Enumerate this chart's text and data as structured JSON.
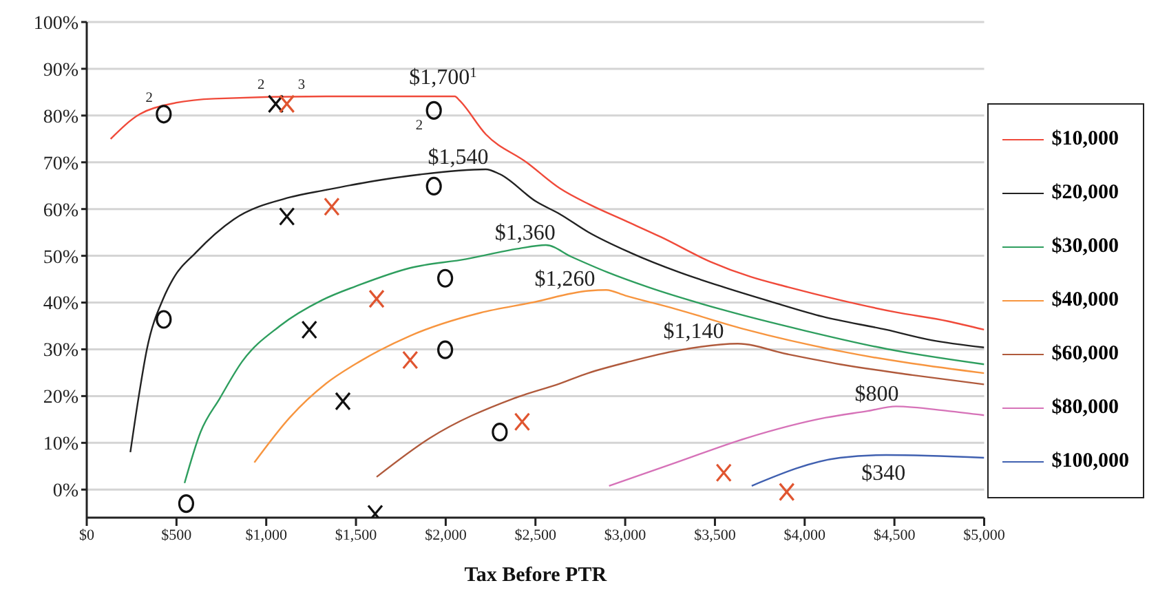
{
  "chart_data": {
    "type": "line",
    "xlabel": "Tax Before PTR",
    "xlim": [
      0,
      5000
    ],
    "xticks": [
      {
        "value": 0,
        "label": "$0"
      },
      {
        "value": 500,
        "label": "$500"
      },
      {
        "value": 1000,
        "label": "$1,000"
      },
      {
        "value": 1500,
        "label": "$1,500"
      },
      {
        "value": 2000,
        "label": "$2,000"
      },
      {
        "value": 2500,
        "label": "$2,500"
      },
      {
        "value": 3000,
        "label": "$3,000"
      },
      {
        "value": 3500,
        "label": "$3,500"
      },
      {
        "value": 4000,
        "label": "$4,000"
      },
      {
        "value": 4500,
        "label": "$4,500"
      },
      {
        "value": 5000,
        "label": "$5,000"
      }
    ],
    "ylim": [
      -6,
      100
    ],
    "yticks": [
      {
        "value": 0,
        "label": "0%"
      },
      {
        "value": 10,
        "label": "10%"
      },
      {
        "value": 20,
        "label": "20%"
      },
      {
        "value": 30,
        "label": "30%"
      },
      {
        "value": 40,
        "label": "40%"
      },
      {
        "value": 50,
        "label": "50%"
      },
      {
        "value": 60,
        "label": "60%"
      },
      {
        "value": 70,
        "label": "70%"
      },
      {
        "value": 80,
        "label": "80%"
      },
      {
        "value": 90,
        "label": "90%"
      },
      {
        "value": 100,
        "label": "100%"
      }
    ],
    "grid": "y",
    "legend": "right",
    "marker": "none",
    "line_style": "solid",
    "series": [
      {
        "name": "$10,000",
        "color": "#f04a3a",
        "x": [
          133,
          296,
          374,
          710,
          1334,
          2051,
          2075,
          2223,
          2450,
          2637,
          2800,
          3000,
          3200,
          3471,
          3700,
          3908,
          4200,
          4500,
          4800,
          5000
        ],
        "values": [
          75,
          80.3,
          81.6,
          83.6,
          84.1,
          84.1,
          83.3,
          76,
          70,
          64.4,
          61,
          57.5,
          54,
          48.8,
          45.5,
          43.3,
          40.5,
          38,
          36,
          34.2
        ]
      },
      {
        "name": "$20,000",
        "color": "#222222",
        "x": [
          243,
          290,
          335,
          428,
          480,
          608,
          819,
          1131,
          1334,
          1600,
          1857,
          2223,
          2300,
          2504,
          2637,
          2793,
          3027,
          3300,
          3549,
          3830,
          4100,
          4454,
          4700,
          5000
        ],
        "values": [
          8,
          20,
          30,
          41,
          45,
          50.7,
          57.8,
          62.5,
          64.1,
          66,
          67.4,
          68.5,
          67.5,
          61.6,
          58.9,
          55.1,
          50.7,
          46.5,
          43.3,
          40,
          37,
          34.2,
          32,
          30.4
        ]
      },
      {
        "name": "$30,000",
        "color": "#2e9e5e",
        "x": [
          545,
          634,
          741,
          866,
          1076,
          1310,
          1521,
          1802,
          2114,
          2400,
          2558,
          2700,
          2900,
          3128,
          3549,
          4000,
          4454,
          5000
        ],
        "values": [
          1.4,
          12.3,
          19.5,
          27.4,
          35,
          40.5,
          43.8,
          47.4,
          49.3,
          51.5,
          52.3,
          49.8,
          46.5,
          43.3,
          38.4,
          34,
          30.1,
          26.8
        ]
      },
      {
        "name": "$40,000",
        "color": "#f7953f",
        "x": [
          934,
          1131,
          1334,
          1521,
          1802,
          2192,
          2480,
          2793,
          2894,
          3000,
          3284,
          3674,
          4197,
          5000
        ],
        "values": [
          5.8,
          15.4,
          22.7,
          27.4,
          32.9,
          37.8,
          40,
          42.5,
          42.7,
          41.5,
          38.6,
          34.2,
          29.6,
          24.9
        ]
      },
      {
        "name": "$60,000",
        "color": "#b05a3c",
        "x": [
          1615,
          1911,
          2379,
          2637,
          2793,
          3027,
          3300,
          3627,
          3900,
          4197,
          4600,
          5000
        ],
        "values": [
          2.7,
          11,
          19.5,
          22.7,
          24.9,
          27.4,
          29.8,
          31.2,
          29,
          26.8,
          24.5,
          22.5
        ]
      },
      {
        "name": "$80,000",
        "color": "#d672b8",
        "x": [
          2910,
          3284,
          3674,
          4119,
          4350,
          4509,
          4800,
          5000
        ],
        "values": [
          0.8,
          5.8,
          11,
          15.4,
          16.8,
          17.8,
          16.8,
          15.9
        ]
      },
      {
        "name": "$100,000",
        "color": "#4060b0",
        "x": [
          3705,
          4197,
          4454,
          5000
        ],
        "values": [
          0.8,
          6.8,
          7.4,
          6.8
        ]
      },
      {
        "type": "scatter",
        "marker": "circle",
        "color": "#111111",
        "x": [
          429,
          429,
          554,
          1934,
          1934,
          1997,
          1997,
          2301
        ],
        "values": [
          80.3,
          36.4,
          -3,
          81.1,
          64.9,
          45.2,
          29.9,
          12.3
        ]
      },
      {
        "type": "scatter",
        "marker": "cross",
        "color": "#111111",
        "x": [
          1053,
          1115,
          1240,
          1427,
          1607
        ],
        "values": [
          82.5,
          58.4,
          34.2,
          18.9,
          -5.2
        ]
      },
      {
        "type": "scatter",
        "marker": "cross",
        "color": "#e05530",
        "x": [
          1115,
          1365,
          1615,
          1802,
          2426,
          3549,
          3900
        ],
        "values": [
          82.5,
          60.5,
          40.8,
          27.7,
          14.5,
          3.6,
          -0.5
        ]
      }
    ],
    "annotations": [
      {
        "text": "$1,700$^{1}$",
        "x": 2051,
        "y": 84.1
      },
      {
        "text": "$1,540",
        "x": 2223,
        "y": 68.5
      },
      {
        "text": "$1,360",
        "x": 2558,
        "y": 52.3
      },
      {
        "text": "$1,260",
        "x": 2894,
        "y": 42.7
      },
      {
        "text": "$1,140",
        "x": 3627,
        "y": 31.2
      },
      {
        "text": "$800",
        "x": 4509,
        "y": 17.8
      },
      {
        "text": "$340",
        "x": 4454,
        "y": 7.4
      },
      {
        "text": "$^{2}$",
        "x": 429,
        "y": 80.3
      },
      {
        "text": "$^{2}$",
        "x": 1053,
        "y": 82.5
      },
      {
        "text": "$^{3}$",
        "x": 1115,
        "y": 82.5
      },
      {
        "text": "$_{2}$",
        "x": 1934,
        "y": 81.1
      }
    ]
  }
}
